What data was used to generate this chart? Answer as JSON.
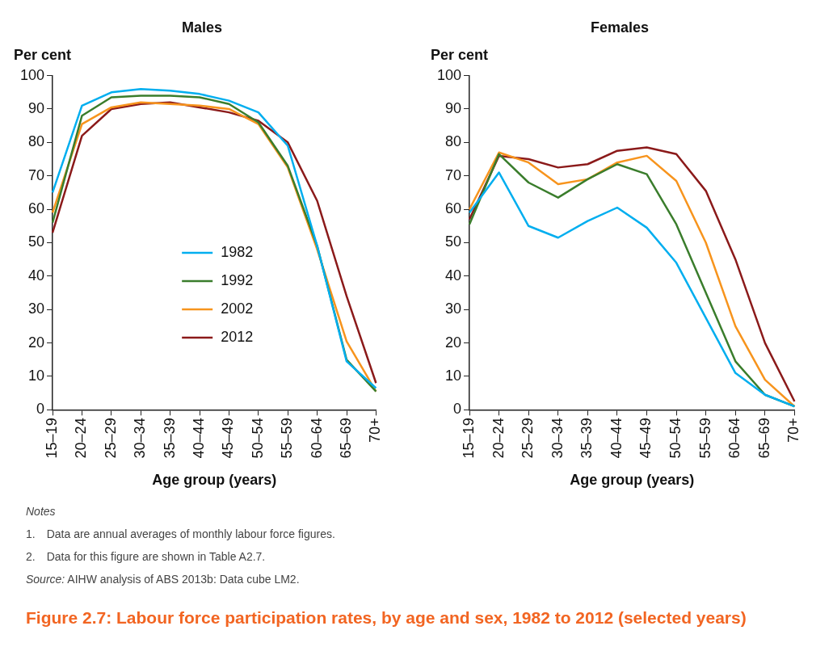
{
  "chart_data": [
    {
      "type": "line",
      "title": "Males",
      "ylabel": "Per cent",
      "xlabel": "Age group (years)",
      "categories": [
        "15–19",
        "20–24",
        "25–29",
        "30–34",
        "35–39",
        "40–44",
        "45–49",
        "50–54",
        "55–59",
        "60–64",
        "65–69",
        "70+"
      ],
      "ylim": [
        0,
        100
      ],
      "yticks": [
        0,
        10,
        20,
        30,
        40,
        50,
        60,
        70,
        80,
        90,
        100
      ],
      "grid": false,
      "legend": "center",
      "marker": "none",
      "line_style": "solid",
      "series": [
        {
          "name": "1982",
          "color": "#00aeef",
          "values": [
            65,
            91,
            95,
            96,
            95.5,
            94.5,
            92.5,
            89,
            79,
            49,
            14.5,
            6.5
          ]
        },
        {
          "name": "1992",
          "color": "#3a7d2c",
          "values": [
            56,
            88,
            93.5,
            94,
            94,
            93.5,
            91.5,
            86,
            73,
            49,
            15,
            5.5
          ]
        },
        {
          "name": "2002",
          "color": "#f7941d",
          "values": [
            59,
            85.5,
            90.5,
            92,
            91.5,
            91,
            90,
            85.5,
            72.5,
            48,
            20.5,
            5.5
          ]
        },
        {
          "name": "2012",
          "color": "#8b1a1a",
          "values": [
            53,
            82,
            90,
            91.5,
            92,
            90.5,
            89,
            86.5,
            80,
            62.5,
            34,
            8
          ]
        }
      ]
    },
    {
      "type": "line",
      "title": "Females",
      "ylabel": "Per cent",
      "xlabel": "Age group (years)",
      "categories": [
        "15–19",
        "20–24",
        "25–29",
        "30–34",
        "35–39",
        "40–44",
        "45–49",
        "50–54",
        "55–59",
        "60–64",
        "65–69",
        "70+"
      ],
      "ylim": [
        0,
        100
      ],
      "yticks": [
        0,
        10,
        20,
        30,
        40,
        50,
        60,
        70,
        80,
        90,
        100
      ],
      "grid": false,
      "marker": "none",
      "line_style": "solid",
      "series": [
        {
          "color": "#00aeef",
          "values": [
            59,
            71,
            55,
            51.5,
            56.5,
            60.5,
            54.5,
            44,
            27.5,
            11,
            4.5,
            1
          ]
        },
        {
          "color": "#3a7d2c",
          "values": [
            55.5,
            76.5,
            68,
            63.5,
            69,
            73.5,
            70.5,
            55.5,
            35,
            14.5,
            4.5,
            1
          ]
        },
        {
          "color": "#f7941d",
          "values": [
            60,
            77,
            74,
            67.5,
            69,
            74,
            76,
            68.5,
            50,
            25,
            9,
            1
          ]
        },
        {
          "color": "#8b1a1a",
          "values": [
            57,
            76,
            75,
            72.5,
            73.5,
            77.5,
            78.5,
            76.5,
            65.5,
            45,
            20,
            2.5
          ]
        }
      ],
      "annotations": [
        "Notes",
        "1. Data are annual averages of monthly labour force figures.",
        "2. Data for this figure are shown in Table A2.7.",
        "Source: AIHW analysis of ABS 2013b: Data cube LM2.",
        "Figure 2.7: Labour force participation rates, by age and sex, 1982 to 2012 (selected years)"
      ]
    }
  ]
}
